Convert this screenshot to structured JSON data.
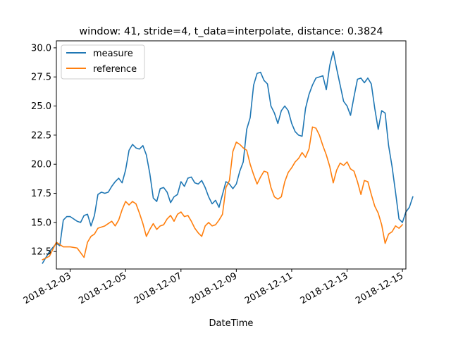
{
  "chart_data": {
    "type": "line",
    "title": "window: 41, stride=4, t_data=interpolate, distance: 0.3824",
    "xlabel": "DateTime",
    "ylabel": "",
    "xlim": [
      "2018-12-02T12:00",
      "2018-12-15T03:00"
    ],
    "ylim": [
      11.0,
      30.6
    ],
    "x_ticks": [
      "2018-12-03",
      "2018-12-05",
      "2018-12-07",
      "2018-12-09",
      "2018-12-11",
      "2018-12-13",
      "2018-12-15"
    ],
    "y_ticks": [
      12.5,
      15.0,
      17.5,
      20.0,
      22.5,
      25.0,
      27.5,
      30.0
    ],
    "y_tick_labels": [
      "12.5",
      "15.0",
      "17.5",
      "20.0",
      "22.5",
      "25.0",
      "27.5",
      "30.0"
    ],
    "grid": false,
    "legend_position": "top-left",
    "series": [
      {
        "name": "measure",
        "color": "#1f77b4",
        "points": [
          [
            "2018-12-02T00:00",
            11.5
          ],
          [
            "2018-12-02T06:00",
            12.5
          ],
          [
            "2018-12-02T12:00",
            13.2
          ],
          [
            "2018-12-02T15:00",
            13.0
          ],
          [
            "2018-12-02T18:00",
            15.2
          ],
          [
            "2018-12-02T21:00",
            15.5
          ],
          [
            "2018-12-03T00:00",
            15.5
          ],
          [
            "2018-12-03T06:00",
            15.1
          ],
          [
            "2018-12-03T09:00",
            15.0
          ],
          [
            "2018-12-03T12:00",
            15.6
          ],
          [
            "2018-12-03T15:00",
            15.7
          ],
          [
            "2018-12-03T18:00",
            14.7
          ],
          [
            "2018-12-03T21:00",
            15.6
          ],
          [
            "2018-12-04T00:00",
            17.4
          ],
          [
            "2018-12-04T03:00",
            17.6
          ],
          [
            "2018-12-04T06:00",
            17.5
          ],
          [
            "2018-12-04T09:00",
            17.6
          ],
          [
            "2018-12-04T12:00",
            18.1
          ],
          [
            "2018-12-04T15:00",
            18.5
          ],
          [
            "2018-12-04T18:00",
            18.8
          ],
          [
            "2018-12-04T21:00",
            18.4
          ],
          [
            "2018-12-05T00:00",
            19.5
          ],
          [
            "2018-12-05T03:00",
            21.2
          ],
          [
            "2018-12-05T06:00",
            21.7
          ],
          [
            "2018-12-05T09:00",
            21.4
          ],
          [
            "2018-12-05T12:00",
            21.3
          ],
          [
            "2018-12-05T15:00",
            21.6
          ],
          [
            "2018-12-05T18:00",
            20.8
          ],
          [
            "2018-12-05T21:00",
            19.2
          ],
          [
            "2018-12-06T00:00",
            17.1
          ],
          [
            "2018-12-06T03:00",
            16.8
          ],
          [
            "2018-12-06T06:00",
            17.9
          ],
          [
            "2018-12-06T09:00",
            18.0
          ],
          [
            "2018-12-06T12:00",
            17.6
          ],
          [
            "2018-12-06T15:00",
            16.7
          ],
          [
            "2018-12-06T18:00",
            17.2
          ],
          [
            "2018-12-06T21:00",
            17.4
          ],
          [
            "2018-12-07T00:00",
            18.5
          ],
          [
            "2018-12-07T03:00",
            18.1
          ],
          [
            "2018-12-07T06:00",
            18.8
          ],
          [
            "2018-12-07T09:00",
            18.9
          ],
          [
            "2018-12-07T12:00",
            18.4
          ],
          [
            "2018-12-07T15:00",
            18.3
          ],
          [
            "2018-12-07T18:00",
            18.6
          ],
          [
            "2018-12-07T21:00",
            18.0
          ],
          [
            "2018-12-08T00:00",
            17.2
          ],
          [
            "2018-12-08T03:00",
            16.6
          ],
          [
            "2018-12-08T06:00",
            16.9
          ],
          [
            "2018-12-08T09:00",
            16.3
          ],
          [
            "2018-12-08T12:00",
            17.4
          ],
          [
            "2018-12-08T15:00",
            18.5
          ],
          [
            "2018-12-08T18:00",
            18.3
          ],
          [
            "2018-12-08T21:00",
            17.9
          ],
          [
            "2018-12-09T00:00",
            18.3
          ],
          [
            "2018-12-09T03:00",
            19.4
          ],
          [
            "2018-12-09T06:00",
            20.2
          ],
          [
            "2018-12-09T09:00",
            23.0
          ],
          [
            "2018-12-09T12:00",
            24.0
          ],
          [
            "2018-12-09T15:00",
            26.8
          ],
          [
            "2018-12-09T18:00",
            27.8
          ],
          [
            "2018-12-09T21:00",
            27.9
          ],
          [
            "2018-12-10T00:00",
            27.2
          ],
          [
            "2018-12-10T03:00",
            26.9
          ],
          [
            "2018-12-10T06:00",
            25.0
          ],
          [
            "2018-12-10T09:00",
            24.4
          ],
          [
            "2018-12-10T12:00",
            23.5
          ],
          [
            "2018-12-10T15:00",
            24.6
          ],
          [
            "2018-12-10T18:00",
            25.0
          ],
          [
            "2018-12-10T21:00",
            24.6
          ],
          [
            "2018-12-11T00:00",
            23.5
          ],
          [
            "2018-12-11T03:00",
            22.8
          ],
          [
            "2018-12-11T06:00",
            22.5
          ],
          [
            "2018-12-11T09:00",
            22.4
          ],
          [
            "2018-12-11T12:00",
            24.8
          ],
          [
            "2018-12-11T15:00",
            26.0
          ],
          [
            "2018-12-11T18:00",
            26.8
          ],
          [
            "2018-12-11T21:00",
            27.4
          ],
          [
            "2018-12-12T00:00",
            27.5
          ],
          [
            "2018-12-12T03:00",
            27.6
          ],
          [
            "2018-12-12T06:00",
            26.4
          ],
          [
            "2018-12-12T09:00",
            28.5
          ],
          [
            "2018-12-12T12:00",
            29.7
          ],
          [
            "2018-12-12T15:00",
            28.2
          ],
          [
            "2018-12-12T18:00",
            26.8
          ],
          [
            "2018-12-12T21:00",
            25.4
          ],
          [
            "2018-12-13T00:00",
            25.0
          ],
          [
            "2018-12-13T03:00",
            24.2
          ],
          [
            "2018-12-13T06:00",
            25.8
          ],
          [
            "2018-12-13T09:00",
            27.3
          ],
          [
            "2018-12-13T12:00",
            27.4
          ],
          [
            "2018-12-13T15:00",
            27.0
          ],
          [
            "2018-12-13T18:00",
            27.4
          ],
          [
            "2018-12-13T21:00",
            26.9
          ],
          [
            "2018-12-14T00:00",
            24.8
          ],
          [
            "2018-12-14T03:00",
            23.0
          ],
          [
            "2018-12-14T06:00",
            24.6
          ],
          [
            "2018-12-14T09:00",
            24.4
          ],
          [
            "2018-12-14T12:00",
            21.6
          ],
          [
            "2018-12-14T15:00",
            19.8
          ],
          [
            "2018-12-14T18:00",
            17.6
          ],
          [
            "2018-12-14T21:00",
            15.3
          ],
          [
            "2018-12-15T00:00",
            15.0
          ],
          [
            "2018-12-15T03:00",
            15.9
          ],
          [
            "2018-12-15T06:00",
            16.3
          ],
          [
            "2018-12-15T09:00",
            17.2
          ]
        ]
      },
      {
        "name": "reference",
        "color": "#ff7f0e",
        "points": [
          [
            "2018-12-02T00:00",
            11.8
          ],
          [
            "2018-12-02T06:00",
            12.1
          ],
          [
            "2018-12-02T12:00",
            13.3
          ],
          [
            "2018-12-02T18:00",
            12.9
          ],
          [
            "2018-12-03T00:00",
            12.9
          ],
          [
            "2018-12-03T06:00",
            12.8
          ],
          [
            "2018-12-03T09:00",
            12.4
          ],
          [
            "2018-12-03T12:00",
            12.0
          ],
          [
            "2018-12-03T15:00",
            13.3
          ],
          [
            "2018-12-03T18:00",
            13.8
          ],
          [
            "2018-12-03T21:00",
            14.0
          ],
          [
            "2018-12-04T00:00",
            14.5
          ],
          [
            "2018-12-04T06:00",
            14.7
          ],
          [
            "2018-12-04T12:00",
            15.1
          ],
          [
            "2018-12-04T15:00",
            14.7
          ],
          [
            "2018-12-04T18:00",
            15.2
          ],
          [
            "2018-12-04T21:00",
            16.1
          ],
          [
            "2018-12-05T00:00",
            16.8
          ],
          [
            "2018-12-05T03:00",
            16.5
          ],
          [
            "2018-12-05T06:00",
            16.8
          ],
          [
            "2018-12-05T09:00",
            16.6
          ],
          [
            "2018-12-05T12:00",
            15.8
          ],
          [
            "2018-12-05T15:00",
            14.9
          ],
          [
            "2018-12-05T18:00",
            13.8
          ],
          [
            "2018-12-05T21:00",
            14.4
          ],
          [
            "2018-12-06T00:00",
            14.9
          ],
          [
            "2018-12-06T03:00",
            14.4
          ],
          [
            "2018-12-06T06:00",
            14.7
          ],
          [
            "2018-12-06T09:00",
            14.8
          ],
          [
            "2018-12-06T12:00",
            15.3
          ],
          [
            "2018-12-06T15:00",
            15.6
          ],
          [
            "2018-12-06T18:00",
            15.1
          ],
          [
            "2018-12-06T21:00",
            15.7
          ],
          [
            "2018-12-07T00:00",
            15.9
          ],
          [
            "2018-12-07T03:00",
            15.5
          ],
          [
            "2018-12-07T06:00",
            15.6
          ],
          [
            "2018-12-07T09:00",
            15.1
          ],
          [
            "2018-12-07T12:00",
            14.5
          ],
          [
            "2018-12-07T15:00",
            14.1
          ],
          [
            "2018-12-07T18:00",
            13.8
          ],
          [
            "2018-12-07T21:00",
            14.7
          ],
          [
            "2018-12-08T00:00",
            15.0
          ],
          [
            "2018-12-08T03:00",
            14.7
          ],
          [
            "2018-12-08T06:00",
            14.8
          ],
          [
            "2018-12-08T09:00",
            15.2
          ],
          [
            "2018-12-08T12:00",
            15.7
          ],
          [
            "2018-12-08T15:00",
            18.0
          ],
          [
            "2018-12-08T18:00",
            18.6
          ],
          [
            "2018-12-08T21:00",
            21.1
          ],
          [
            "2018-12-09T00:00",
            21.9
          ],
          [
            "2018-12-09T03:00",
            21.7
          ],
          [
            "2018-12-09T06:00",
            21.4
          ],
          [
            "2018-12-09T09:00",
            21.2
          ],
          [
            "2018-12-09T12:00",
            20.0
          ],
          [
            "2018-12-09T15:00",
            19.1
          ],
          [
            "2018-12-09T18:00",
            18.3
          ],
          [
            "2018-12-09T21:00",
            18.9
          ],
          [
            "2018-12-10T00:00",
            19.4
          ],
          [
            "2018-12-10T03:00",
            19.3
          ],
          [
            "2018-12-10T06:00",
            18.0
          ],
          [
            "2018-12-10T09:00",
            17.2
          ],
          [
            "2018-12-10T12:00",
            17.0
          ],
          [
            "2018-12-10T15:00",
            17.2
          ],
          [
            "2018-12-10T18:00",
            18.5
          ],
          [
            "2018-12-10T21:00",
            19.3
          ],
          [
            "2018-12-11T00:00",
            19.7
          ],
          [
            "2018-12-11T03:00",
            20.2
          ],
          [
            "2018-12-11T06:00",
            20.5
          ],
          [
            "2018-12-11T09:00",
            21.0
          ],
          [
            "2018-12-11T12:00",
            20.6
          ],
          [
            "2018-12-11T15:00",
            21.3
          ],
          [
            "2018-12-11T18:00",
            23.2
          ],
          [
            "2018-12-11T21:00",
            23.1
          ],
          [
            "2018-12-12T00:00",
            22.5
          ],
          [
            "2018-12-12T03:00",
            21.6
          ],
          [
            "2018-12-12T06:00",
            20.8
          ],
          [
            "2018-12-12T09:00",
            19.8
          ],
          [
            "2018-12-12T12:00",
            18.4
          ],
          [
            "2018-12-12T15:00",
            19.5
          ],
          [
            "2018-12-12T18:00",
            20.1
          ],
          [
            "2018-12-12T21:00",
            19.9
          ],
          [
            "2018-12-13T00:00",
            20.2
          ],
          [
            "2018-12-13T03:00",
            19.6
          ],
          [
            "2018-12-13T06:00",
            19.4
          ],
          [
            "2018-12-13T09:00",
            18.5
          ],
          [
            "2018-12-13T12:00",
            17.4
          ],
          [
            "2018-12-13T15:00",
            18.6
          ],
          [
            "2018-12-13T18:00",
            18.5
          ],
          [
            "2018-12-13T21:00",
            17.4
          ],
          [
            "2018-12-14T00:00",
            16.4
          ],
          [
            "2018-12-14T03:00",
            15.8
          ],
          [
            "2018-12-14T06:00",
            14.8
          ],
          [
            "2018-12-14T09:00",
            13.2
          ],
          [
            "2018-12-14T12:00",
            14.0
          ],
          [
            "2018-12-14T15:00",
            14.2
          ],
          [
            "2018-12-14T18:00",
            14.7
          ],
          [
            "2018-12-14T21:00",
            14.5
          ],
          [
            "2018-12-15T00:00",
            14.8
          ]
        ]
      }
    ]
  }
}
